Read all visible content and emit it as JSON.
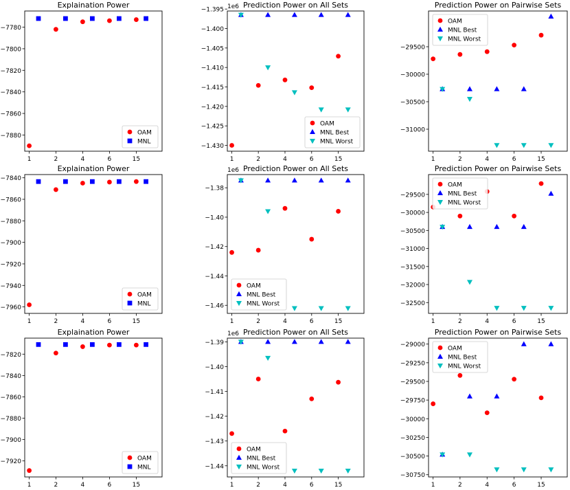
{
  "colors": {
    "oam": "#ff0000",
    "mnl_best": "#0000ff",
    "mnl_worst": "#00bfbf"
  },
  "chart_data": [
    {
      "type": "scatter",
      "title": "Explaination Power",
      "x_ticks": [
        "1",
        "2",
        "4",
        "6",
        "15"
      ],
      "ylim": [
        -7895,
        -7765
      ],
      "y_ticks": [
        -7880,
        -7860,
        -7840,
        -7820,
        -7800,
        -7780
      ],
      "y_tick_labels": [
        "−7880",
        "−7860",
        "−7840",
        "−7820",
        "−7800",
        "−7780"
      ],
      "y_offset": "",
      "legend": "bottom-right",
      "series": [
        {
          "name": "OAM",
          "marker": "circle",
          "values": [
            -7890,
            -7782,
            -7775,
            -7774,
            -7773
          ]
        },
        {
          "name": "MNL",
          "marker": "square",
          "values": [
            -7772,
            -7772,
            -7772,
            -7772,
            -7772
          ]
        }
      ]
    },
    {
      "type": "scatter",
      "title": "Prediction Power on All Sets",
      "x_ticks": [
        "1",
        "2",
        "4",
        "6",
        "15"
      ],
      "ylim": [
        -1.4315,
        -1.3955
      ],
      "y_ticks": [
        -1.43,
        -1.425,
        -1.42,
        -1.415,
        -1.41,
        -1.405,
        -1.4,
        -1.395
      ],
      "y_tick_labels": [
        "−1.430",
        "−1.425",
        "−1.420",
        "−1.415",
        "−1.410",
        "−1.405",
        "−1.400",
        "−1.395"
      ],
      "y_offset": "1e6",
      "legend": "bottom-right",
      "series": [
        {
          "name": "OAM",
          "marker": "circle",
          "values": [
            -1.43,
            -1.4146,
            -1.4132,
            -1.4152,
            -1.4071
          ]
        },
        {
          "name": "MNL Best",
          "marker": "triangle-up",
          "values": [
            -1.3965,
            -1.3965,
            -1.3965,
            -1.3965,
            -1.3965
          ]
        },
        {
          "name": "MNL Worst",
          "marker": "triangle-down",
          "values": [
            -1.3965,
            -1.41,
            -1.4164,
            -1.4208,
            -1.4208
          ]
        }
      ]
    },
    {
      "type": "scatter",
      "title": "Prediction Power on Pairwise Sets",
      "x_ticks": [
        "1",
        "2",
        "4",
        "6",
        "15"
      ],
      "ylim": [
        -31400,
        -28850
      ],
      "y_ticks": [
        -31000,
        -30500,
        -30000,
        -29500
      ],
      "y_tick_labels": [
        "−31000",
        "−30500",
        "−30000",
        "−29500"
      ],
      "y_offset": "",
      "legend": "top-left",
      "series": [
        {
          "name": "OAM",
          "marker": "circle",
          "values": [
            -29720,
            -29640,
            -29590,
            -29470,
            -29290
          ]
        },
        {
          "name": "MNL Best",
          "marker": "triangle-up",
          "values": [
            -30270,
            -30270,
            -30270,
            -30270,
            -28950
          ]
        },
        {
          "name": "MNL Worst",
          "marker": "triangle-down",
          "values": [
            -30270,
            -30450,
            -31290,
            -31290,
            -31290
          ]
        }
      ]
    },
    {
      "type": "scatter",
      "title": "Explaination Power",
      "x_ticks": [
        "1",
        "2",
        "4",
        "6",
        "15"
      ],
      "ylim": [
        -7966,
        -7837
      ],
      "y_ticks": [
        -7960,
        -7940,
        -7920,
        -7900,
        -7880,
        -7860,
        -7840
      ],
      "y_tick_labels": [
        "−7960",
        "−7940",
        "−7920",
        "−7900",
        "−7880",
        "−7860",
        "−7840"
      ],
      "y_offset": "",
      "legend": "bottom-right",
      "series": [
        {
          "name": "OAM",
          "marker": "circle",
          "values": [
            -7958,
            -7851,
            -7845,
            -7844,
            -7843.5
          ]
        },
        {
          "name": "MNL",
          "marker": "square",
          "values": [
            -7843.5,
            -7843.5,
            -7843.5,
            -7843.5,
            -7843.5
          ]
        }
      ]
    },
    {
      "type": "scatter",
      "title": "Prediction Power on All Sets",
      "x_ticks": [
        "1",
        "2",
        "4",
        "6",
        "15"
      ],
      "ylim": [
        -1.4655,
        -1.371
      ],
      "y_ticks": [
        -1.46,
        -1.44,
        -1.42,
        -1.4,
        -1.38
      ],
      "y_tick_labels": [
        "−1.46",
        "−1.44",
        "−1.42",
        "−1.40",
        "−1.38"
      ],
      "y_offset": "1e6",
      "legend": "bottom-left",
      "series": [
        {
          "name": "OAM",
          "marker": "circle",
          "values": [
            -1.424,
            -1.4225,
            -1.394,
            -1.415,
            -1.396
          ]
        },
        {
          "name": "MNL Best",
          "marker": "triangle-up",
          "values": [
            -1.375,
            -1.375,
            -1.375,
            -1.375,
            -1.375
          ]
        },
        {
          "name": "MNL Worst",
          "marker": "triangle-down",
          "values": [
            -1.375,
            -1.396,
            -1.462,
            -1.462,
            -1.462
          ]
        }
      ]
    },
    {
      "type": "scatter",
      "title": "Prediction Power on Pairwise Sets",
      "x_ticks": [
        "1",
        "2",
        "4",
        "6",
        "15"
      ],
      "ylim": [
        -32800,
        -28950
      ],
      "y_ticks": [
        -32500,
        -32000,
        -31500,
        -31000,
        -30500,
        -30000,
        -29500
      ],
      "y_tick_labels": [
        "−32500",
        "−32000",
        "−31500",
        "−31000",
        "−30500",
        "−30000",
        "−29500"
      ],
      "y_offset": "",
      "legend": "top-left",
      "series": [
        {
          "name": "OAM",
          "marker": "circle",
          "values": [
            -29850,
            -30100,
            -29420,
            -30100,
            -29200
          ]
        },
        {
          "name": "MNL Best",
          "marker": "triangle-up",
          "values": [
            -30400,
            -30400,
            -30400,
            -30400,
            -29480
          ]
        },
        {
          "name": "MNL Worst",
          "marker": "triangle-down",
          "values": [
            -30400,
            -31930,
            -32650,
            -32650,
            -32650
          ]
        }
      ]
    },
    {
      "type": "scatter",
      "title": "Explaination Power",
      "x_ticks": [
        "1",
        "2",
        "4",
        "6",
        "15"
      ],
      "ylim": [
        -7935,
        -7805
      ],
      "y_ticks": [
        -7920,
        -7900,
        -7880,
        -7860,
        -7840,
        -7820
      ],
      "y_tick_labels": [
        "−7920",
        "−7900",
        "−7880",
        "−7860",
        "−7840",
        "−7820"
      ],
      "y_offset": "",
      "legend": "bottom-right",
      "series": [
        {
          "name": "OAM",
          "marker": "circle",
          "values": [
            -7929,
            -7819,
            -7813,
            -7811.5,
            -7811.5
          ]
        },
        {
          "name": "MNL",
          "marker": "square",
          "values": [
            -7811,
            -7811,
            -7811,
            -7811,
            -7811
          ]
        }
      ]
    },
    {
      "type": "scatter",
      "title": "Prediction Power on All Sets",
      "x_ticks": [
        "1",
        "2",
        "4",
        "6",
        "15"
      ],
      "ylim": [
        -1.4445,
        -1.3885
      ],
      "y_ticks": [
        -1.44,
        -1.43,
        -1.42,
        -1.41,
        -1.4,
        -1.39
      ],
      "y_tick_labels": [
        "−1.44",
        "−1.43",
        "−1.42",
        "−1.41",
        "−1.40",
        "−1.39"
      ],
      "y_offset": "1e6",
      "legend": "bottom-left",
      "series": [
        {
          "name": "OAM",
          "marker": "circle",
          "values": [
            -1.427,
            -1.405,
            -1.426,
            -1.413,
            -1.4063
          ]
        },
        {
          "name": "MNL Best",
          "marker": "triangle-up",
          "values": [
            -1.39,
            -1.39,
            -1.39,
            -1.39,
            -1.39
          ]
        },
        {
          "name": "MNL Worst",
          "marker": "triangle-down",
          "values": [
            -1.39,
            -1.3965,
            -1.442,
            -1.442,
            -1.442
          ]
        }
      ]
    },
    {
      "type": "scatter",
      "title": "Prediction Power on Pairwise Sets",
      "x_ticks": [
        "1",
        "2",
        "4",
        "6",
        "15"
      ],
      "ylim": [
        -30780,
        -28920
      ],
      "y_ticks": [
        -30750,
        -30500,
        -30250,
        -30000,
        -29750,
        -29500,
        -29250,
        -29000
      ],
      "y_tick_labels": [
        "−30750",
        "−30500",
        "−30250",
        "−30000",
        "−29750",
        "−29500",
        "−29250",
        "−29000"
      ],
      "y_offset": "",
      "legend": "top-left",
      "series": [
        {
          "name": "OAM",
          "marker": "circle",
          "values": [
            -29800,
            -29420,
            -29920,
            -29470,
            -29720
          ]
        },
        {
          "name": "MNL Best",
          "marker": "triangle-up",
          "values": [
            -30480,
            -29700,
            -29700,
            -29000,
            -29000
          ]
        },
        {
          "name": "MNL Worst",
          "marker": "triangle-down",
          "values": [
            -30480,
            -30480,
            -30680,
            -30680,
            -30680
          ]
        }
      ]
    }
  ]
}
